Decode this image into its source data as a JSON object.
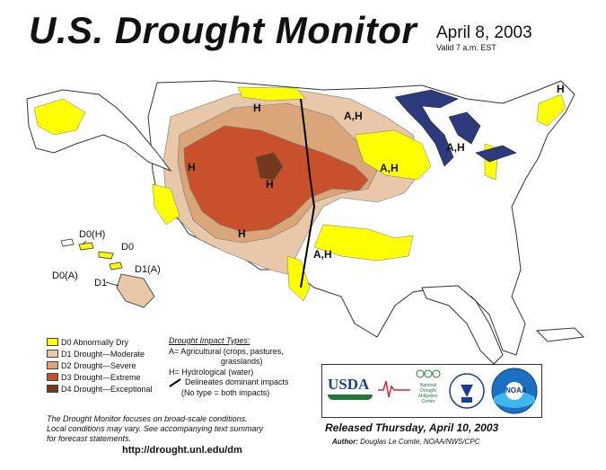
{
  "header": {
    "title": "U.S. Drought Monitor",
    "date": "April 8, 2003",
    "valid": "Valid 7 a.m. EST"
  },
  "colors": {
    "d0": "#ffff00",
    "d1": "#fcd37f",
    "d1_tan": "#e8c8a8",
    "d2": "#d9a579",
    "d3": "#c8502a",
    "d4": "#73391b",
    "water": "#2d3a7c"
  },
  "map": {
    "region_labels": [
      "H",
      "H",
      "H",
      "H",
      "A,H",
      "A,H",
      "A,H",
      "A,H",
      "H"
    ],
    "hawaii_labels": [
      "D0(H)",
      "D0",
      "D0(A)",
      "D1(A)",
      "D1"
    ]
  },
  "legend": {
    "items": [
      {
        "label": "D0 Abnormally Dry",
        "color": "#ffff00"
      },
      {
        "label": "D1 Drought—Moderate",
        "color": "#e8c8a8"
      },
      {
        "label": "D2 Drought—Severe",
        "color": "#d9a579"
      },
      {
        "label": "D3 Drought—Extreme",
        "color": "#c8502a"
      },
      {
        "label": "D4 Drought—Exceptional",
        "color": "#73391b"
      }
    ]
  },
  "impact": {
    "title": "Drought Impact Types:",
    "line1": "A= Agricultural (crops, pastures,",
    "line2": "grasslands)",
    "line3": "H= Hydrological (water)",
    "line4": "Delineates dominant impacts",
    "line5": "(No type = both impacts)"
  },
  "logos": {
    "usda": "USDA",
    "ndmc_line1": "National",
    "ndmc_line2": "Drought",
    "ndmc_line3": "Mitigation",
    "ndmc_line4": "Center",
    "noaa": "NOAA"
  },
  "footer": {
    "note_line1": "The Drought Monitor focuses on broad-scale conditions.",
    "note_line2": "Local conditions may vary. See accompanying text summary",
    "note_line3": "for forecast statements.",
    "url": "http://drought.unl.edu/dm",
    "released": "Released Thursday, April 10, 2003",
    "author_label": "Author:",
    "author_name": "Douglas Le Comte, NOAA/NWS/CPC"
  }
}
